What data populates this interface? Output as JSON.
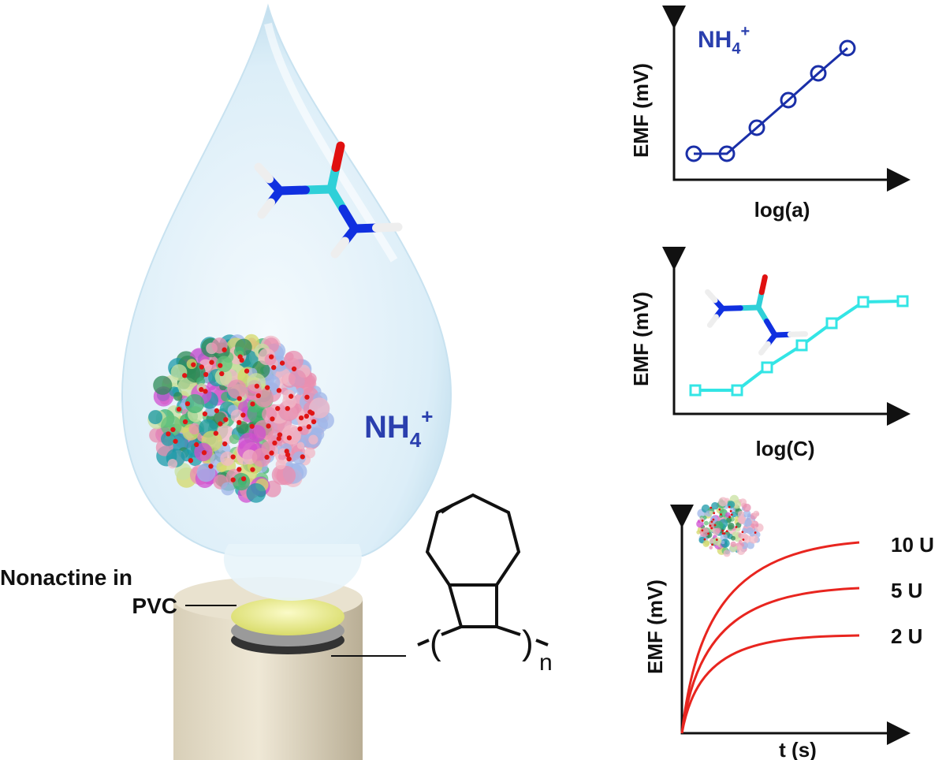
{
  "drop": {
    "ion_label": {
      "base": "NH",
      "sub": "4",
      "sup": "+"
    }
  },
  "electrode": {
    "membrane_label": [
      "Nonactine in",
      "PVC"
    ]
  },
  "polymer": {
    "repeat_subscript": "n"
  },
  "plots": [
    {
      "ion_label": {
        "base": "NH",
        "sub": "4",
        "sup": "+"
      },
      "y_label": "EMF (mV)",
      "x_label": "log(a)"
    },
    {
      "y_label": "EMF (mV)",
      "x_label": "log(C)"
    },
    {
      "y_label": "EMF (mV)",
      "x_label": "t (s)",
      "curve_labels": [
        "10 U",
        "5 U",
        "2 U"
      ]
    }
  ]
}
